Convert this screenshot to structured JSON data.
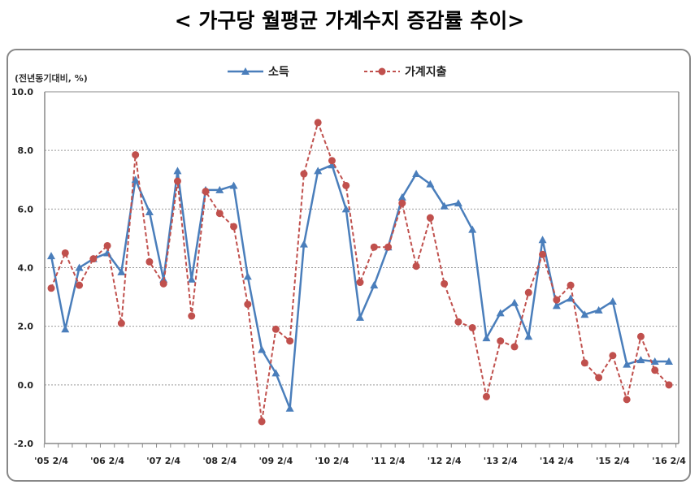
{
  "title": "< 가구당 월평균 가계수지 증감률 추이>",
  "chart_data": {
    "type": "line",
    "title": "< 가구당 월평균 가계수지 증감률 추이>",
    "ylabel": "(전년동기대비, %)",
    "xlabel": "",
    "ylim": [
      -2.0,
      10.0
    ],
    "yticks": [
      "10.0",
      "8.0",
      "6.0",
      "4.0",
      "2.0",
      "0.0",
      "-2.0"
    ],
    "ytick_values": [
      10,
      8,
      6,
      4,
      2,
      0,
      -2
    ],
    "grid": true,
    "legend_position": "top-center",
    "x_tick_labels": [
      "'05 2/4",
      "'06 2/4",
      "'07 2/4",
      "'08 2/4",
      "'09 2/4",
      "'10 2/4",
      "'11 2/4",
      "'12 2/4",
      "'13 2/4",
      "'14 2/4",
      "'15 2/4",
      "'16 2/4"
    ],
    "x_label_every": 4,
    "point_count": 45,
    "series": [
      {
        "name": "소득",
        "color": "#4a7ebb",
        "style": "solid",
        "marker": "triangle",
        "values": [
          4.4,
          1.9,
          4.0,
          4.3,
          4.5,
          3.85,
          7.0,
          5.9,
          3.6,
          7.3,
          3.6,
          6.65,
          6.65,
          6.8,
          3.7,
          1.2,
          0.4,
          -0.8,
          4.8,
          7.3,
          7.5,
          6.0,
          2.3,
          3.4,
          4.7,
          6.4,
          7.2,
          6.85,
          6.1,
          6.2,
          5.3,
          1.6,
          2.45,
          2.8,
          1.65,
          4.95,
          2.7,
          2.95,
          2.4,
          2.55,
          2.85,
          0.7,
          0.85,
          0.8,
          0.8
        ]
      },
      {
        "name": "가계지출",
        "color": "#c0504d",
        "style": "dashed",
        "marker": "circle",
        "values": [
          3.3,
          4.5,
          3.4,
          4.3,
          4.75,
          2.1,
          7.85,
          4.2,
          3.45,
          6.95,
          2.35,
          6.6,
          5.85,
          5.4,
          2.75,
          -1.25,
          1.9,
          1.5,
          7.2,
          8.95,
          7.65,
          6.8,
          3.5,
          4.7,
          4.7,
          6.2,
          4.05,
          5.7,
          3.45,
          2.15,
          1.95,
          -0.4,
          1.5,
          1.3,
          3.15,
          4.45,
          2.9,
          3.4,
          0.75,
          0.25,
          1.0,
          -0.5,
          1.65,
          0.5,
          0.0
        ]
      }
    ]
  }
}
